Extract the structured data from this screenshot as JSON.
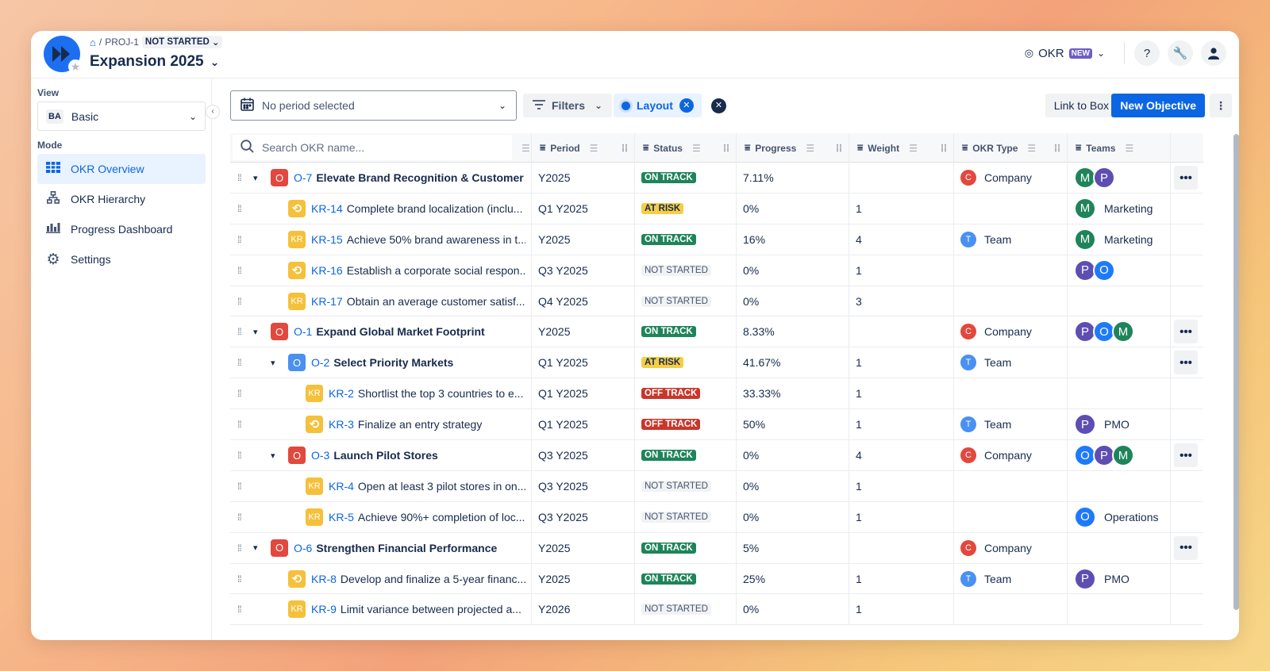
{
  "header": {
    "breadcrumb_project": "PROJ-1",
    "breadcrumb_status": "NOT STARTED",
    "title": "Expansion 2025",
    "okr_label": "OKR",
    "new_badge": "NEW",
    "help_label": "?"
  },
  "sidebar": {
    "view_label": "View",
    "view_badge": "BA",
    "view_value": "Basic",
    "mode_label": "Mode",
    "items": [
      {
        "label": "OKR Overview",
        "icon": "table-icon",
        "active": true
      },
      {
        "label": "OKR Hierarchy",
        "icon": "hierarchy-icon",
        "active": false
      },
      {
        "label": "Progress Dashboard",
        "icon": "bar-chart-icon",
        "active": false
      },
      {
        "label": "Settings",
        "icon": "gear-icon",
        "active": false
      }
    ]
  },
  "toolbar": {
    "period_placeholder": "No period selected",
    "filters_label": "Filters",
    "layout_label": "Layout",
    "link_box_label": "Link to Box",
    "new_objective_label": "New Objective"
  },
  "table": {
    "search_placeholder": "Search OKR name...",
    "columns": [
      "Period",
      "Status",
      "Progress",
      "Weight",
      "OKR Type",
      "Teams"
    ],
    "rows": [
      {
        "level": 0,
        "type": "O",
        "icon": "o-red",
        "expand": true,
        "key": "O-7",
        "title": "Elevate Brand Recognition & Customer ...",
        "period": "Y2025",
        "status": "ON TRACK",
        "progress": "7.11%",
        "weight": "",
        "okr_type": "Company",
        "type_letter": "C",
        "teams": [
          "M",
          "P"
        ],
        "team_name": "",
        "more": true
      },
      {
        "level": 1,
        "type": "KR",
        "icon": "sync",
        "key": "KR-14",
        "title": "Complete brand localization (inclu...",
        "period": "Q1 Y2025",
        "status": "AT RISK",
        "progress": "0%",
        "weight": "1",
        "okr_type": "",
        "type_letter": "",
        "teams": [
          "M"
        ],
        "team_name": "Marketing"
      },
      {
        "level": 1,
        "type": "KR",
        "icon": "kr",
        "key": "KR-15",
        "title": "Achieve 50% brand awareness in t...",
        "period": "Y2025",
        "status": "ON TRACK",
        "progress": "16%",
        "weight": "4",
        "okr_type": "Team",
        "type_letter": "T",
        "teams": [
          "M"
        ],
        "team_name": "Marketing"
      },
      {
        "level": 1,
        "type": "KR",
        "icon": "sync",
        "key": "KR-16",
        "title": "Establish a corporate social respon...",
        "period": "Q3 Y2025",
        "status": "NOT STARTED",
        "progress": "0%",
        "weight": "1",
        "okr_type": "",
        "type_letter": "",
        "teams": [
          "P",
          "O"
        ],
        "team_name": ""
      },
      {
        "level": 1,
        "type": "KR",
        "icon": "kr",
        "key": "KR-17",
        "title": "Obtain an average customer satisf...",
        "period": "Q4 Y2025",
        "status": "NOT STARTED",
        "progress": "0%",
        "weight": "3",
        "okr_type": "",
        "type_letter": "",
        "teams": [],
        "team_name": ""
      },
      {
        "level": 0,
        "type": "O",
        "icon": "o-red",
        "expand": true,
        "key": "O-1",
        "title": "Expand Global Market Footprint",
        "period": "Y2025",
        "status": "ON TRACK",
        "progress": "8.33%",
        "weight": "",
        "okr_type": "Company",
        "type_letter": "C",
        "teams": [
          "P",
          "O",
          "M"
        ],
        "team_name": "",
        "more": true
      },
      {
        "level": 1,
        "type": "O",
        "icon": "o-blue",
        "expand": true,
        "key": "O-2",
        "title": "Select Priority Markets",
        "period": "Q1 Y2025",
        "status": "AT RISK",
        "progress": "41.67%",
        "weight": "1",
        "okr_type": "Team",
        "type_letter": "T",
        "teams": [],
        "team_name": "",
        "more": true
      },
      {
        "level": 2,
        "type": "KR",
        "icon": "kr",
        "key": "KR-2",
        "title": "Shortlist the top 3 countries to e...",
        "period": "Q1 Y2025",
        "status": "OFF TRACK",
        "progress": "33.33%",
        "weight": "1",
        "okr_type": "",
        "type_letter": "",
        "teams": [],
        "team_name": ""
      },
      {
        "level": 2,
        "type": "KR",
        "icon": "sync",
        "key": "KR-3",
        "title": "Finalize an entry strategy",
        "period": "Q1 Y2025",
        "status": "OFF TRACK",
        "progress": "50%",
        "weight": "1",
        "okr_type": "Team",
        "type_letter": "T",
        "teams": [
          "P"
        ],
        "team_name": "PMO"
      },
      {
        "level": 1,
        "type": "O",
        "icon": "o-red",
        "expand": true,
        "key": "O-3",
        "title": "Launch Pilot Stores",
        "period": "Q3 Y2025",
        "status": "ON TRACK",
        "progress": "0%",
        "weight": "4",
        "okr_type": "Company",
        "type_letter": "C",
        "teams": [
          "O",
          "P",
          "M"
        ],
        "team_name": "",
        "more": true
      },
      {
        "level": 2,
        "type": "KR",
        "icon": "kr",
        "key": "KR-4",
        "title": "Open at least 3 pilot stores in on...",
        "period": "Q3 Y2025",
        "status": "NOT STARTED",
        "progress": "0%",
        "weight": "1",
        "okr_type": "",
        "type_letter": "",
        "teams": [],
        "team_name": ""
      },
      {
        "level": 2,
        "type": "KR",
        "icon": "kr",
        "key": "KR-5",
        "title": "Achieve 90%+ completion of loc...",
        "period": "Q3 Y2025",
        "status": "NOT STARTED",
        "progress": "0%",
        "weight": "1",
        "okr_type": "",
        "type_letter": "",
        "teams": [
          "O"
        ],
        "team_name": "Operations"
      },
      {
        "level": 0,
        "type": "O",
        "icon": "o-red",
        "expand": true,
        "key": "O-6",
        "title": "Strengthen Financial Performance",
        "period": "Y2025",
        "status": "ON TRACK",
        "progress": "5%",
        "weight": "",
        "okr_type": "Company",
        "type_letter": "C",
        "teams": [],
        "team_name": "",
        "more": true
      },
      {
        "level": 1,
        "type": "KR",
        "icon": "sync",
        "key": "KR-8",
        "title": "Develop and finalize a 5-year financ...",
        "period": "Y2025",
        "status": "ON TRACK",
        "progress": "25%",
        "weight": "1",
        "okr_type": "Team",
        "type_letter": "T",
        "teams": [
          "P"
        ],
        "team_name": "PMO"
      },
      {
        "level": 1,
        "type": "KR",
        "icon": "kr",
        "key": "KR-9",
        "title": "Limit variance between projected a...",
        "period": "Y2026",
        "status": "NOT STARTED",
        "progress": "0%",
        "weight": "1",
        "okr_type": "",
        "type_letter": "",
        "teams": [],
        "team_name": ""
      }
    ]
  },
  "colors": {
    "accent": "#0c66e4",
    "on_track": "#1f845a",
    "at_risk": "#f5cd47",
    "off_track": "#c9372c"
  }
}
